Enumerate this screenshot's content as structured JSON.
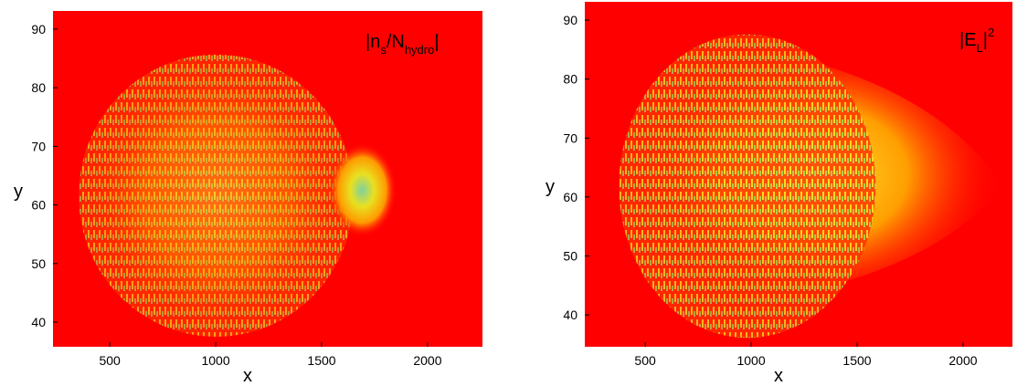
{
  "chart_data": [
    {
      "type": "heatmap",
      "title": [
        "|n",
        "s",
        "/N",
        "hydro",
        "|"
      ],
      "xlabel": "x",
      "ylabel": "y",
      "background": "#ff0000",
      "xlim": [
        232,
        2259
      ],
      "xticks": [
        500,
        1000,
        1500,
        2000
      ],
      "ylim": [
        35.8,
        93.1
      ],
      "yticks": [
        40,
        50,
        60,
        70,
        80,
        90
      ]
    },
    {
      "type": "heatmap",
      "title": [
        "|E",
        "L",
        "|",
        "2"
      ],
      "xlabel": "x",
      "ylabel": "y",
      "background": "#ff0000",
      "xlim": [
        215,
        2233
      ],
      "xticks": [
        500,
        1000,
        1500,
        2000
      ],
      "ylim": [
        34.6,
        93.1
      ],
      "yticks": [
        40,
        50,
        60,
        70,
        80,
        90
      ]
    }
  ]
}
